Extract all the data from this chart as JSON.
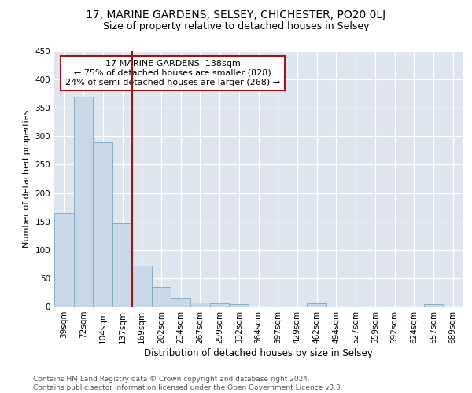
{
  "title1": "17, MARINE GARDENS, SELSEY, CHICHESTER, PO20 0LJ",
  "title2": "Size of property relative to detached houses in Selsey",
  "xlabel": "Distribution of detached houses by size in Selsey",
  "ylabel": "Number of detached properties",
  "categories": [
    "39sqm",
    "72sqm",
    "104sqm",
    "137sqm",
    "169sqm",
    "202sqm",
    "234sqm",
    "267sqm",
    "299sqm",
    "332sqm",
    "364sqm",
    "397sqm",
    "429sqm",
    "462sqm",
    "494sqm",
    "527sqm",
    "559sqm",
    "592sqm",
    "624sqm",
    "657sqm",
    "689sqm"
  ],
  "values": [
    165,
    370,
    290,
    147,
    72,
    34,
    15,
    7,
    6,
    4,
    0,
    0,
    0,
    5,
    0,
    0,
    0,
    0,
    0,
    4,
    0
  ],
  "bar_color": "#c8d8e8",
  "bar_edge_color": "#7aaabb",
  "vline_x_index": 3,
  "vline_color": "#aa1111",
  "annotation_text": "17 MARINE GARDENS: 138sqm\n← 75% of detached houses are smaller (828)\n24% of semi-detached houses are larger (268) →",
  "annotation_box_color": "#ffffff",
  "annotation_box_edge": "#aa1111",
  "ylim": [
    0,
    450
  ],
  "yticks": [
    0,
    50,
    100,
    150,
    200,
    250,
    300,
    350,
    400,
    450
  ],
  "bg_color": "#dde6ef",
  "footnote": "Contains HM Land Registry data © Crown copyright and database right 2024.\nContains public sector information licensed under the Open Government Licence v3.0.",
  "title1_fontsize": 10,
  "title2_fontsize": 9,
  "xlabel_fontsize": 8.5,
  "ylabel_fontsize": 8,
  "tick_fontsize": 7.5,
  "annotation_fontsize": 8,
  "footnote_fontsize": 6.5
}
